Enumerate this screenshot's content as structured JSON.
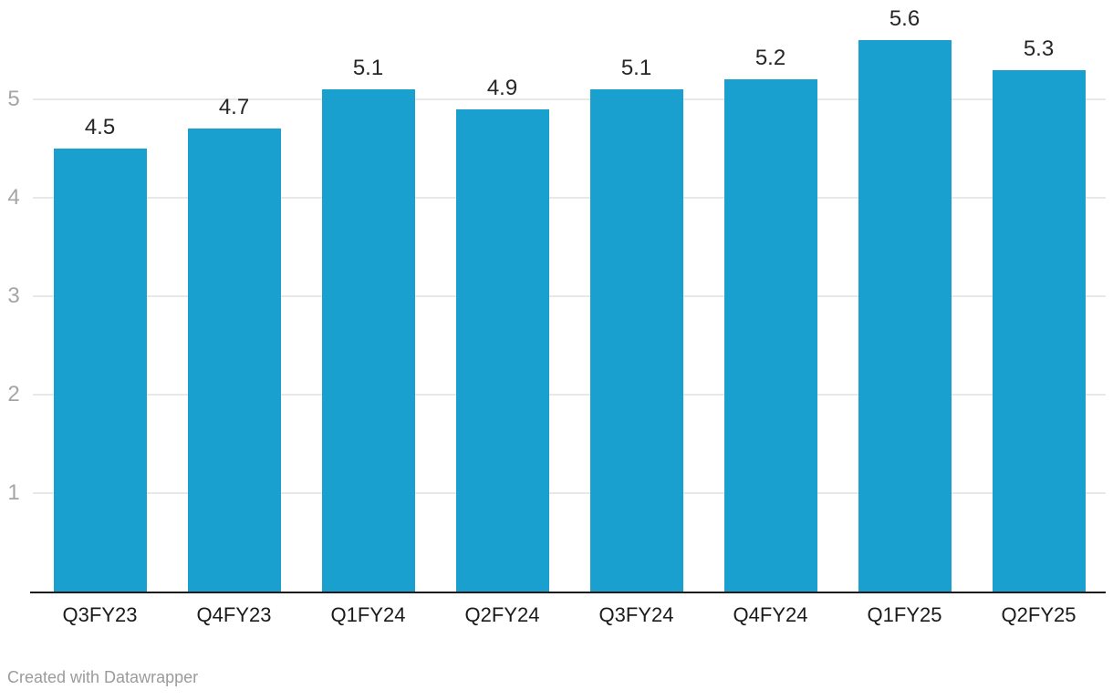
{
  "chart_data": {
    "type": "bar",
    "categories": [
      "Q3FY23",
      "Q4FY23",
      "Q1FY24",
      "Q2FY24",
      "Q3FY24",
      "Q4FY24",
      "Q1FY25",
      "Q2FY25"
    ],
    "values": [
      4.5,
      4.7,
      5.1,
      4.9,
      5.1,
      5.2,
      5.6,
      5.3
    ],
    "value_labels": [
      "4.5",
      "4.7",
      "5.1",
      "4.9",
      "5.1",
      "5.2",
      "5.6",
      "5.3"
    ],
    "title": "",
    "xlabel": "",
    "ylabel": "",
    "yticks": [
      1,
      2,
      3,
      4,
      5
    ],
    "ytick_labels": [
      "1",
      "2",
      "3",
      "4",
      "5"
    ],
    "ylim": [
      0,
      6
    ],
    "grid": "horizontal",
    "legend": "none"
  },
  "colors": {
    "background": "#ffffff",
    "bar": "#1aa0ce",
    "grid": "#e8e8e8",
    "axis_line": "#1a1a1a",
    "ytick_label": "#a5a5a5",
    "value_label": "#262626",
    "xtick_label": "#1a1a1a",
    "credit": "#9b9b9b"
  },
  "footer": {
    "credit": "Created with Datawrapper"
  }
}
